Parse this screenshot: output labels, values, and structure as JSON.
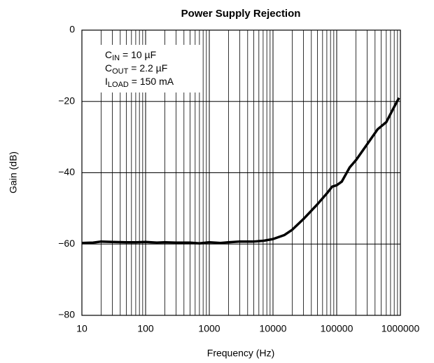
{
  "chart_data": {
    "type": "line",
    "title": "Power Supply Rejection",
    "x_label": "Frequency (Hz)",
    "y_label": "Gain (dB)",
    "annotations": [
      {
        "main": "C",
        "sub": "IN",
        "rest": " = 10 µF"
      },
      {
        "main": "C",
        "sub": "OUT",
        "rest": " = 2.2 µF"
      },
      {
        "main": "I",
        "sub": "LOAD",
        "rest": " = 150 mA"
      }
    ],
    "x_log": true,
    "grid": true,
    "xlim": [
      10,
      1000000
    ],
    "ylim": [
      -80,
      0
    ],
    "xticks": [
      10,
      100,
      1000,
      10000,
      100000,
      1000000
    ],
    "yticks": [
      0,
      {
        "value": -20,
        "label": "−20"
      },
      {
        "value": -40,
        "label": "−40"
      },
      {
        "value": -60,
        "label": "−60"
      },
      {
        "value": -80,
        "label": "−80"
      }
    ],
    "x": [
      10,
      15,
      20,
      30,
      50,
      70,
      100,
      150,
      200,
      300,
      500,
      700,
      1000,
      1500,
      2000,
      3000,
      5000,
      7000,
      10000,
      15000,
      20000,
      30000,
      50000,
      70000,
      85000,
      100000,
      120000,
      160000,
      200000,
      280000,
      440000,
      600000,
      800000,
      950000
    ],
    "series": [
      {
        "color": "#000000",
        "values": [
          -59.7,
          -59.6,
          -59.3,
          -59.4,
          -59.5,
          -59.5,
          -59.4,
          -59.6,
          -59.5,
          -59.6,
          -59.6,
          -59.8,
          -59.5,
          -59.7,
          -59.5,
          -59.3,
          -59.3,
          -59.1,
          -58.6,
          -57.5,
          -56.0,
          -53.0,
          -48.8,
          -45.8,
          -43.9,
          -43.5,
          -42.5,
          -38.5,
          -36.5,
          -32.8,
          -27.8,
          -25.8,
          -21.5,
          -19.0
        ]
      }
    ]
  }
}
